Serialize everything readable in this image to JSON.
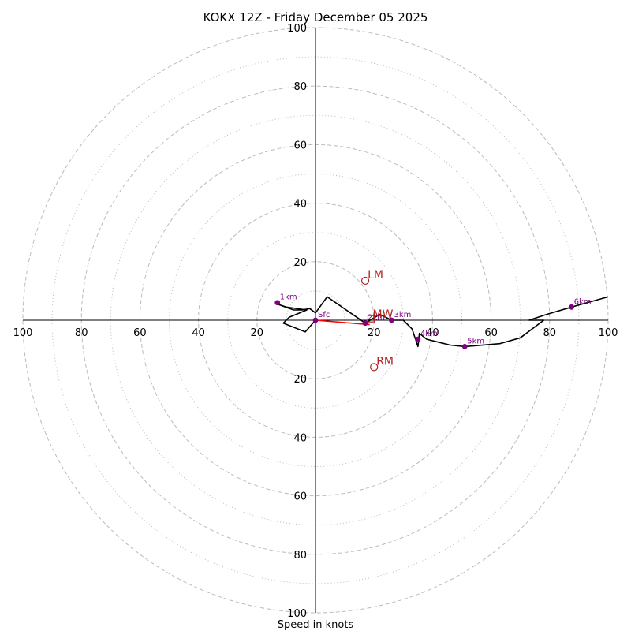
{
  "chart_data": {
    "type": "scatter",
    "title": "KOKX 12Z - Friday December 05 2025",
    "xlabel": "Speed in knots",
    "ylabel": "",
    "range": 100,
    "ring_major_knots": [
      20,
      40,
      60,
      80,
      100
    ],
    "ring_minor_knots": [
      10,
      30,
      50,
      70,
      90
    ],
    "tick_labels": {
      "x_left": [
        "100",
        "80",
        "60",
        "40",
        "20"
      ],
      "x_right": [
        "20",
        "40",
        "60",
        "80",
        "100"
      ],
      "y_up": [
        "20",
        "40",
        "60",
        "80",
        "100"
      ],
      "y_down": [
        "20",
        "40",
        "60",
        "80",
        "100"
      ]
    },
    "hodograph": {
      "name": "wind profile",
      "color": "#000000",
      "points": [
        [
          0,
          0
        ],
        [
          -3.5,
          -4
        ],
        [
          -11,
          -1
        ],
        [
          -9,
          1
        ],
        [
          -3,
          3.5
        ],
        [
          -10,
          4.5
        ],
        [
          -13,
          5.5
        ],
        [
          -7.5,
          3.5
        ],
        [
          -4.5,
          3.5
        ],
        [
          -2,
          4
        ],
        [
          0,
          2.5
        ],
        [
          4,
          8
        ],
        [
          17,
          -1
        ],
        [
          22,
          2
        ],
        [
          26,
          0
        ],
        [
          30,
          0
        ],
        [
          33,
          -3
        ],
        [
          35,
          -9
        ],
        [
          35.5,
          -4.5
        ],
        [
          38,
          -6.5
        ],
        [
          42,
          -7.5
        ],
        [
          46,
          -8.5
        ],
        [
          51,
          -9
        ],
        [
          63,
          -8
        ],
        [
          70,
          -6
        ],
        [
          78,
          0
        ],
        [
          73,
          0
        ],
        [
          79,
          2
        ],
        [
          87.5,
          4.5
        ],
        [
          100,
          8
        ]
      ]
    },
    "height_markers": [
      {
        "label": "Sfc",
        "u": 0,
        "v": 0
      },
      {
        "label": "1km",
        "u": -13,
        "v": 6
      },
      {
        "label": "2km",
        "u": 17,
        "v": -1
      },
      {
        "label": "3km",
        "u": 26,
        "v": 0
      },
      {
        "label": "4km",
        "u": 35,
        "v": -6.5
      },
      {
        "label": "5km",
        "u": 51,
        "v": -9
      },
      {
        "label": "6km",
        "u": 87.5,
        "v": 4.5
      }
    ],
    "storm_motion": {
      "LM": {
        "label": "LM",
        "u": 17,
        "v": 13.5
      },
      "RM": {
        "label": "RM",
        "u": 20,
        "v": -16
      },
      "MW": {
        "label": "MW",
        "u": 19,
        "v": 0.5
      }
    },
    "shear_vector": {
      "from": [
        0,
        0
      ],
      "to": [
        18.5,
        -1.5
      ],
      "color": "#ff0000"
    },
    "colors": {
      "marker": "#800080",
      "motion": "#b22222",
      "grid": "#bbbbbb",
      "axis": "#000000"
    }
  }
}
